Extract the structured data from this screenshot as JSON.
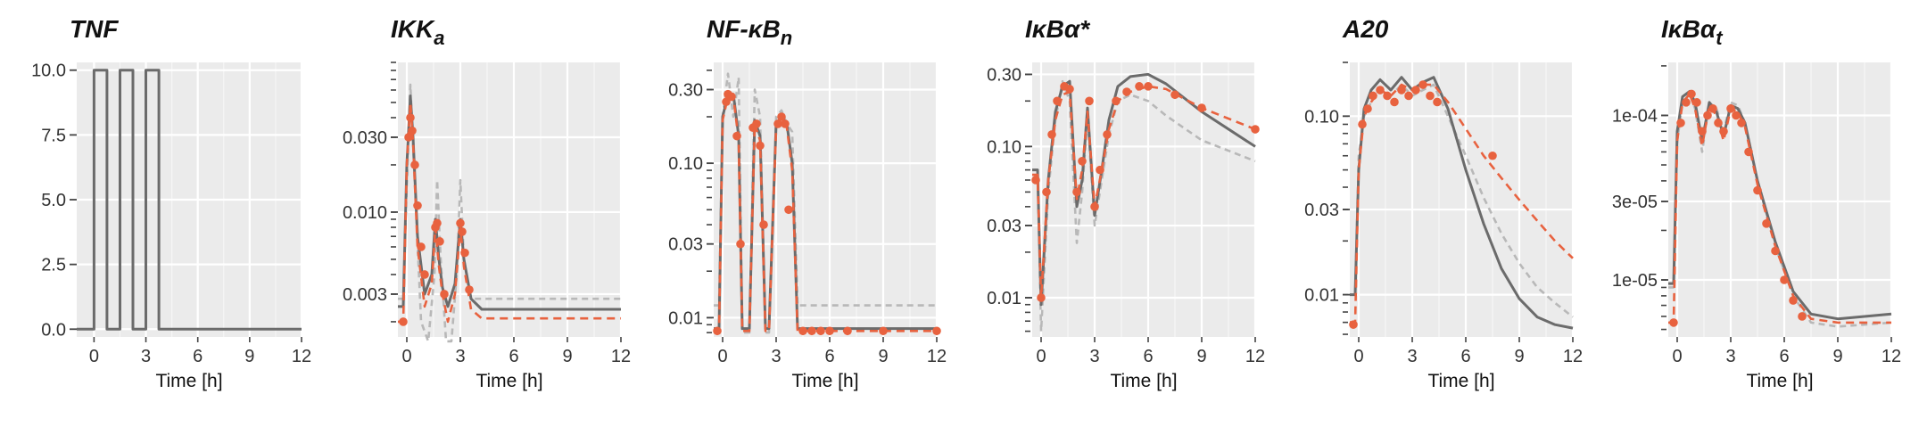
{
  "chart_data": [
    {
      "type": "line",
      "title": "TNF",
      "title_sub": "",
      "xlabel": "Time [h]",
      "ylabel": "",
      "xlim": [
        -1,
        12
      ],
      "ylim": [
        -0.3,
        10.3
      ],
      "yscale": "linear",
      "x_ticks": [
        0,
        3,
        6,
        9,
        12
      ],
      "y_ticks": [
        0.0,
        2.5,
        5.0,
        7.5,
        10.0
      ],
      "y_tick_labels": [
        "0.0",
        "2.5",
        "5.0",
        "7.5",
        "10.0"
      ],
      "grid": true,
      "series": [
        {
          "style": "solid",
          "x": [
            -1,
            0,
            0,
            0.75,
            0.75,
            1.5,
            1.5,
            2.25,
            2.25,
            3,
            3,
            3.75,
            3.75,
            12
          ],
          "y": [
            0,
            0,
            10,
            10,
            0,
            0,
            10,
            10,
            0,
            0,
            10,
            10,
            0,
            0
          ]
        }
      ]
    },
    {
      "type": "line",
      "title": "IKK",
      "title_sub": "a",
      "xlabel": "Time [h]",
      "ylabel": "",
      "xlim": [
        -0.5,
        12
      ],
      "ylim": [
        0.0016,
        0.09
      ],
      "yscale": "log",
      "x_ticks": [
        0,
        3,
        6,
        9,
        12
      ],
      "y_ticks": [
        0.003,
        0.01,
        0.03
      ],
      "y_tick_labels": [
        "0.003",
        "0.010",
        "0.030"
      ],
      "grid": true,
      "series": [
        {
          "style": "dashed-gray",
          "x": [
            -0.5,
            -0.2,
            0,
            0.2,
            0.4,
            0.8,
            1.2,
            1.55,
            1.7,
            1.9,
            2.2,
            2.5,
            2.8,
            3.0,
            3.2,
            3.6,
            4.2,
            5,
            12
          ],
          "y": [
            0.0028,
            0.0028,
            0.015,
            0.065,
            0.02,
            0.002,
            0.0015,
            0.004,
            0.016,
            0.005,
            0.0015,
            0.0015,
            0.004,
            0.016,
            0.005,
            0.0028,
            0.0028,
            0.0028,
            0.0028
          ]
        },
        {
          "style": "solid",
          "x": [
            -0.5,
            -0.2,
            0,
            0.2,
            0.35,
            0.6,
            1.0,
            1.4,
            1.6,
            1.8,
            2.0,
            2.3,
            2.7,
            3.0,
            3.2,
            3.6,
            4.2,
            5,
            12
          ],
          "y": [
            0.0025,
            0.0025,
            0.02,
            0.055,
            0.03,
            0.007,
            0.003,
            0.004,
            0.009,
            0.005,
            0.0033,
            0.0025,
            0.0035,
            0.009,
            0.005,
            0.0028,
            0.0024,
            0.0024,
            0.0024
          ]
        },
        {
          "style": "dashed-orange",
          "x": [
            -0.5,
            -0.2,
            0,
            0.2,
            0.35,
            0.6,
            1.0,
            1.4,
            1.6,
            1.8,
            2.0,
            2.3,
            2.7,
            3.0,
            3.2,
            3.6,
            4.2,
            5,
            12
          ],
          "y": [
            0.002,
            0.002,
            0.02,
            0.05,
            0.028,
            0.006,
            0.0025,
            0.0035,
            0.008,
            0.0045,
            0.003,
            0.002,
            0.003,
            0.008,
            0.0045,
            0.0024,
            0.0021,
            0.0021,
            0.0021
          ]
        },
        {
          "style": "points",
          "x": [
            -0.2,
            0.1,
            0.2,
            0.3,
            0.45,
            0.6,
            0.8,
            1.0,
            1.6,
            1.7,
            1.85,
            2.1,
            3.0,
            3.1,
            3.25,
            3.5
          ],
          "y": [
            0.002,
            0.03,
            0.04,
            0.033,
            0.02,
            0.011,
            0.006,
            0.004,
            0.008,
            0.0085,
            0.0065,
            0.003,
            0.0085,
            0.0075,
            0.0055,
            0.0032
          ]
        }
      ]
    },
    {
      "type": "line",
      "title": "NF-κB",
      "title_sub": "n",
      "xlabel": "Time [h]",
      "ylabel": "",
      "xlim": [
        -0.5,
        12
      ],
      "ylim": [
        0.0075,
        0.45
      ],
      "yscale": "log",
      "x_ticks": [
        0,
        3,
        6,
        9,
        12
      ],
      "y_ticks": [
        0.01,
        0.03,
        0.1,
        0.3
      ],
      "y_tick_labels": [
        "0.01",
        "0.03",
        "0.10",
        "0.30"
      ],
      "grid": true,
      "series": [
        {
          "style": "dashed-gray",
          "x": [
            -0.5,
            -0.2,
            0,
            0.3,
            0.6,
            0.9,
            1.1,
            1.5,
            1.8,
            2.1,
            2.4,
            2.6,
            3.0,
            3.3,
            3.6,
            3.9,
            4.2,
            5,
            12
          ],
          "y": [
            0.012,
            0.012,
            0.2,
            0.38,
            0.2,
            0.36,
            0.008,
            0.008,
            0.3,
            0.2,
            0.008,
            0.008,
            0.2,
            0.22,
            0.18,
            0.16,
            0.012,
            0.012,
            0.012
          ]
        },
        {
          "style": "solid",
          "x": [
            -0.5,
            -0.2,
            0,
            0.3,
            0.6,
            0.9,
            1.1,
            1.5,
            1.8,
            2.1,
            2.4,
            2.6,
            3.0,
            3.3,
            3.6,
            3.9,
            4.2,
            5,
            12
          ],
          "y": [
            0.0085,
            0.0085,
            0.2,
            0.28,
            0.28,
            0.15,
            0.0085,
            0.0085,
            0.19,
            0.15,
            0.0085,
            0.0085,
            0.18,
            0.2,
            0.18,
            0.1,
            0.0085,
            0.0085,
            0.0085
          ]
        },
        {
          "style": "dashed-orange",
          "x": [
            -0.5,
            -0.2,
            0,
            0.3,
            0.6,
            0.9,
            1.1,
            1.5,
            1.8,
            2.1,
            2.4,
            2.6,
            3.0,
            3.3,
            3.6,
            3.9,
            4.2,
            5,
            12
          ],
          "y": [
            0.0082,
            0.0082,
            0.19,
            0.27,
            0.27,
            0.14,
            0.0082,
            0.0082,
            0.18,
            0.14,
            0.0082,
            0.0082,
            0.17,
            0.19,
            0.17,
            0.09,
            0.0082,
            0.0082,
            0.0082
          ]
        },
        {
          "style": "points",
          "x": [
            -0.3,
            0.2,
            0.3,
            0.5,
            0.8,
            1.0,
            1.7,
            1.9,
            2.1,
            2.3,
            3.1,
            3.3,
            3.5,
            3.7,
            4.5,
            5.0,
            5.5,
            6.0,
            7.0,
            9.0,
            12.0
          ],
          "y": [
            0.0082,
            0.25,
            0.28,
            0.27,
            0.15,
            0.03,
            0.17,
            0.18,
            0.13,
            0.04,
            0.18,
            0.2,
            0.18,
            0.05,
            0.0082,
            0.0082,
            0.0082,
            0.0082,
            0.0082,
            0.0082,
            0.0082
          ]
        }
      ]
    },
    {
      "type": "line",
      "title": "IκBα*",
      "title_sub": "",
      "xlabel": "Time [h]",
      "ylabel": "",
      "xlim": [
        -0.5,
        12
      ],
      "ylim": [
        0.0055,
        0.36
      ],
      "yscale": "log",
      "x_ticks": [
        0,
        3,
        6,
        9,
        12
      ],
      "y_ticks": [
        0.01,
        0.03,
        0.1,
        0.3
      ],
      "y_tick_labels": [
        "0.01",
        "0.03",
        "0.10",
        "0.30"
      ],
      "grid": true,
      "series": [
        {
          "style": "dashed-gray",
          "x": [
            -0.5,
            -0.2,
            0,
            0.4,
            0.8,
            1.2,
            1.6,
            2.0,
            2.3,
            2.6,
            3.0,
            3.4,
            3.8,
            4.3,
            5.0,
            6.0,
            7.0,
            9.0,
            12
          ],
          "y": [
            0.07,
            0.07,
            0.006,
            0.05,
            0.15,
            0.27,
            0.2,
            0.023,
            0.05,
            0.16,
            0.03,
            0.06,
            0.12,
            0.2,
            0.22,
            0.2,
            0.16,
            0.11,
            0.08
          ]
        },
        {
          "style": "solid",
          "x": [
            -0.5,
            -0.2,
            0,
            0.4,
            0.8,
            1.2,
            1.6,
            2.0,
            2.3,
            2.6,
            3.0,
            3.4,
            3.8,
            4.3,
            5.0,
            6.0,
            7.0,
            9.0,
            12
          ],
          "y": [
            0.07,
            0.07,
            0.009,
            0.06,
            0.17,
            0.25,
            0.27,
            0.04,
            0.06,
            0.18,
            0.035,
            0.07,
            0.15,
            0.25,
            0.29,
            0.3,
            0.26,
            0.17,
            0.1
          ]
        },
        {
          "style": "dashed-orange",
          "x": [
            -0.5,
            -0.2,
            0,
            0.4,
            0.8,
            1.2,
            1.6,
            2.0,
            2.3,
            2.6,
            3.0,
            3.4,
            3.8,
            4.3,
            5.0,
            6.0,
            7.0,
            9.0,
            12
          ],
          "y": [
            0.065,
            0.065,
            0.01,
            0.06,
            0.15,
            0.22,
            0.23,
            0.045,
            0.07,
            0.17,
            0.04,
            0.07,
            0.13,
            0.2,
            0.23,
            0.25,
            0.24,
            0.18,
            0.13
          ]
        },
        {
          "style": "points",
          "x": [
            -0.3,
            0,
            0.3,
            0.6,
            0.9,
            1.3,
            1.6,
            2.0,
            2.3,
            2.7,
            3.0,
            3.3,
            3.7,
            4.2,
            4.8,
            5.5,
            6.0,
            7.5,
            9.0,
            12.0
          ],
          "y": [
            0.06,
            0.01,
            0.05,
            0.12,
            0.2,
            0.25,
            0.24,
            0.05,
            0.08,
            0.2,
            0.04,
            0.07,
            0.12,
            0.2,
            0.23,
            0.25,
            0.25,
            0.22,
            0.18,
            0.13
          ]
        }
      ]
    },
    {
      "type": "line",
      "title": "A20",
      "title_sub": "",
      "xlabel": "Time [h]",
      "ylabel": "",
      "xlim": [
        -0.5,
        12
      ],
      "ylim": [
        0.0058,
        0.2
      ],
      "yscale": "log",
      "x_ticks": [
        0,
        3,
        6,
        9,
        12
      ],
      "y_ticks": [
        0.01,
        0.03,
        0.1
      ],
      "y_tick_labels": [
        "0.01",
        "0.03",
        "0.10"
      ],
      "grid": true,
      "series": [
        {
          "style": "dashed-gray",
          "x": [
            -0.5,
            -0.2,
            0,
            0.3,
            0.7,
            1.2,
            1.8,
            2.4,
            3.0,
            3.6,
            4.2,
            5.0,
            6.0,
            7.0,
            8.0,
            9.0,
            10.0,
            11.0,
            12
          ],
          "y": [
            0.01,
            0.01,
            0.06,
            0.1,
            0.12,
            0.14,
            0.13,
            0.15,
            0.13,
            0.14,
            0.15,
            0.1,
            0.06,
            0.035,
            0.022,
            0.015,
            0.011,
            0.009,
            0.0075
          ]
        },
        {
          "style": "solid",
          "x": [
            -0.5,
            -0.2,
            0,
            0.3,
            0.7,
            1.2,
            1.8,
            2.4,
            3.0,
            3.6,
            4.2,
            5.0,
            6.0,
            7.0,
            8.0,
            9.0,
            10.0,
            11.0,
            12
          ],
          "y": [
            0.01,
            0.01,
            0.05,
            0.11,
            0.14,
            0.16,
            0.14,
            0.165,
            0.14,
            0.155,
            0.165,
            0.11,
            0.05,
            0.025,
            0.014,
            0.0095,
            0.0075,
            0.0068,
            0.0065
          ]
        },
        {
          "style": "dashed-orange",
          "x": [
            -0.5,
            -0.2,
            0,
            0.3,
            0.7,
            1.2,
            1.8,
            2.4,
            3.0,
            3.6,
            4.2,
            5.0,
            6.0,
            7.0,
            8.0,
            9.0,
            10.0,
            11.0,
            12
          ],
          "y": [
            0.007,
            0.007,
            0.05,
            0.1,
            0.12,
            0.14,
            0.13,
            0.15,
            0.14,
            0.15,
            0.15,
            0.12,
            0.085,
            0.06,
            0.045,
            0.034,
            0.026,
            0.02,
            0.016
          ]
        },
        {
          "style": "points",
          "x": [
            -0.3,
            0.2,
            0.5,
            0.8,
            1.2,
            1.6,
            2.0,
            2.4,
            2.8,
            3.2,
            3.6,
            4.0,
            4.4,
            7.5
          ],
          "y": [
            0.0068,
            0.09,
            0.11,
            0.13,
            0.14,
            0.13,
            0.12,
            0.14,
            0.13,
            0.14,
            0.15,
            0.13,
            0.12,
            0.06
          ]
        }
      ]
    },
    {
      "type": "line",
      "title": "IκBα",
      "title_sub": "t",
      "xlabel": "Time [h]",
      "ylabel": "",
      "xlim": [
        -0.5,
        12
      ],
      "ylim": [
        4.5e-06,
        0.00021
      ],
      "yscale": "log",
      "x_ticks": [
        0,
        3,
        6,
        9,
        12
      ],
      "y_ticks": [
        1e-05,
        3e-05,
        0.0001
      ],
      "y_tick_labels": [
        "1e-05",
        "3e-05",
        "1e-04"
      ],
      "grid": true,
      "series": [
        {
          "style": "dashed-gray",
          "x": [
            -0.5,
            -0.2,
            0,
            0.3,
            0.7,
            1.0,
            1.4,
            1.8,
            2.2,
            2.6,
            3.0,
            3.4,
            3.8,
            4.5,
            5.5,
            6.5,
            7.5,
            9.0,
            12
          ],
          "y": [
            9e-06,
            9e-06,
            7e-05,
            0.00012,
            0.000135,
            0.00011,
            6e-05,
            0.00012,
            0.00011,
            8e-05,
            0.00012,
            0.000115,
            9e-05,
            4e-05,
            1.6e-05,
            8e-06,
            5.5e-06,
            5.2e-06,
            5.5e-06
          ]
        },
        {
          "style": "solid",
          "x": [
            -0.5,
            -0.2,
            0,
            0.3,
            0.7,
            1.0,
            1.4,
            1.8,
            2.2,
            2.6,
            3.0,
            3.4,
            3.8,
            4.5,
            5.5,
            6.5,
            7.5,
            9.0,
            12
          ],
          "y": [
            9.5e-06,
            9.5e-06,
            8e-05,
            0.00013,
            0.00014,
            0.00012,
            7e-05,
            0.00012,
            0.000105,
            7.5e-05,
            0.000115,
            0.00011,
            9e-05,
            4e-05,
            1.7e-05,
            8.5e-06,
            6.2e-06,
            5.8e-06,
            6.2e-06
          ]
        },
        {
          "style": "dashed-orange",
          "x": [
            -0.5,
            -0.2,
            0,
            0.3,
            0.7,
            1.0,
            1.4,
            1.8,
            2.2,
            2.6,
            3.0,
            3.4,
            3.8,
            4.5,
            5.5,
            6.5,
            7.5,
            9.0,
            12
          ],
          "y": [
            5.5e-06,
            5.5e-06,
            7e-05,
            0.00012,
            0.000135,
            0.00011,
            6.5e-05,
            0.000115,
            0.0001,
            7e-05,
            0.00011,
            0.000105,
            8.5e-05,
            3.8e-05,
            1.6e-05,
            8e-06,
            5.8e-06,
            5.5e-06,
            5.5e-06
          ]
        },
        {
          "style": "points",
          "x": [
            -0.2,
            0.2,
            0.5,
            0.8,
            1.1,
            1.4,
            1.7,
            2.0,
            2.3,
            2.6,
            3.0,
            3.3,
            3.6,
            4.0,
            4.5,
            5.0,
            5.5,
            6.0,
            6.5,
            7.0
          ],
          "y": [
            5.5e-06,
            9e-05,
            0.00012,
            0.000135,
            0.00012,
            8e-05,
            0.0001,
            0.00011,
            9e-05,
            8e-05,
            0.00011,
            0.0001,
            9e-05,
            6e-05,
            3.5e-05,
            2.2e-05,
            1.5e-05,
            1e-05,
            7.5e-06,
            6e-06
          ]
        }
      ]
    }
  ]
}
